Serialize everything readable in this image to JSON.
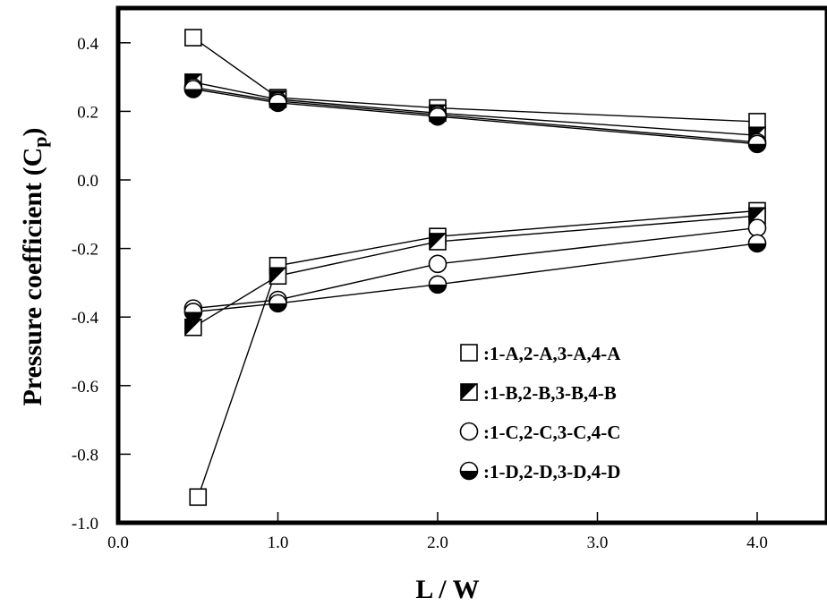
{
  "chart_data": {
    "type": "line",
    "xlabel": "L / W",
    "ylabel_main": "Pressure coefficient (C",
    "ylabel_sub": "p",
    "ylabel_close": ")",
    "xlim": [
      0.0,
      4.0
    ],
    "ylim": [
      -1.0,
      0.4
    ],
    "x_ticks": [
      "0.0",
      "1.0",
      "2.0",
      "3.0",
      "4.0"
    ],
    "x_tick_values": [
      0.0,
      1.0,
      2.0,
      3.0,
      4.0
    ],
    "y_ticks": [
      "0.4",
      "0.2",
      "0.0",
      "-0.2",
      "-0.4",
      "-0.6",
      "-0.8",
      "-1.0"
    ],
    "y_tick_values": [
      0.4,
      0.2,
      0.0,
      -0.2,
      -0.4,
      -0.6,
      -0.8,
      -1.0
    ],
    "grid": false,
    "legend_position": "bottom-right",
    "series": [
      {
        "name": ":1-A,2-A,3-A,4-A",
        "marker": "square-open",
        "group": "upper",
        "points": [
          [
            0.47,
            0.415
          ],
          [
            1.0,
            0.24
          ],
          [
            2.0,
            0.21
          ],
          [
            4.0,
            0.17
          ]
        ]
      },
      {
        "name": ":1-B,2-B,3-B,4-B",
        "marker": "square-half",
        "group": "upper",
        "points": [
          [
            0.47,
            0.285
          ],
          [
            1.0,
            0.235
          ],
          [
            2.0,
            0.195
          ],
          [
            4.0,
            0.13
          ]
        ]
      },
      {
        "name": ":1-C,2-C,3-C,4-C",
        "marker": "circle-open",
        "group": "upper",
        "points": [
          [
            0.47,
            0.27
          ],
          [
            1.0,
            0.23
          ],
          [
            2.0,
            0.19
          ],
          [
            4.0,
            0.11
          ]
        ]
      },
      {
        "name": ":1-D,2-D,3-D,4-D",
        "marker": "circle-half",
        "group": "upper",
        "points": [
          [
            0.47,
            0.265
          ],
          [
            1.0,
            0.225
          ],
          [
            2.0,
            0.185
          ],
          [
            4.0,
            0.105
          ]
        ]
      },
      {
        "name": ":1-A,2-A,3-A,4-A",
        "marker": "square-open",
        "group": "lower",
        "points": [
          [
            0.5,
            -0.925
          ],
          [
            1.0,
            -0.25
          ],
          [
            2.0,
            -0.165
          ],
          [
            4.0,
            -0.09
          ]
        ]
      },
      {
        "name": ":1-B,2-B,3-B,4-B",
        "marker": "square-half",
        "group": "lower",
        "points": [
          [
            0.47,
            -0.43
          ],
          [
            1.0,
            -0.28
          ],
          [
            2.0,
            -0.18
          ],
          [
            4.0,
            -0.105
          ]
        ]
      },
      {
        "name": ":1-C,2-C,3-C,4-C",
        "marker": "circle-open",
        "group": "lower",
        "points": [
          [
            0.47,
            -0.375
          ],
          [
            1.0,
            -0.35
          ],
          [
            2.0,
            -0.245
          ],
          [
            4.0,
            -0.14
          ]
        ]
      },
      {
        "name": ":1-D,2-D,3-D,4-D",
        "marker": "circle-half",
        "group": "lower",
        "points": [
          [
            0.47,
            -0.385
          ],
          [
            1.0,
            -0.36
          ],
          [
            2.0,
            -0.305
          ],
          [
            4.0,
            -0.185
          ]
        ]
      }
    ],
    "legend": [
      {
        "label": ":1-A,2-A,3-A,4-A",
        "marker": "square-open"
      },
      {
        "label": ":1-B,2-B,3-B,4-B",
        "marker": "square-half"
      },
      {
        "label": ":1-C,2-C,3-C,4-C",
        "marker": "circle-open"
      },
      {
        "label": ":1-D,2-D,3-D,4-D",
        "marker": "circle-half"
      }
    ]
  }
}
